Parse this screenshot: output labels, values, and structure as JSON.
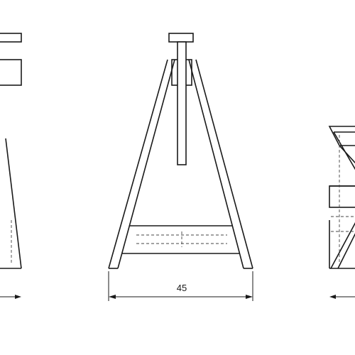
{
  "drawing": {
    "dimension_label": "45"
  }
}
